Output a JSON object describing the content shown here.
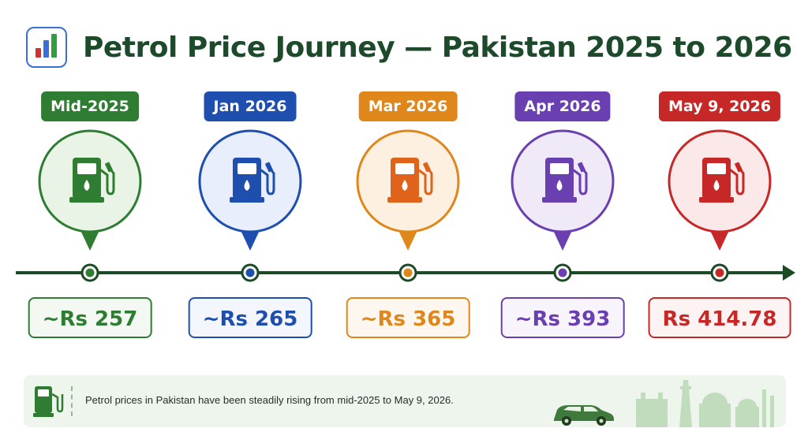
{
  "header": {
    "title": "Petrol Price Journey — Pakistan 2025 to 2026",
    "logo_icon": "bar-chart-icon"
  },
  "colors": {
    "line": "#1b4a24",
    "green": "#2e7d32",
    "blue": "#1e4fae",
    "orange": "#e0871c",
    "purple": "#6a3fb0",
    "red": "#c62828"
  },
  "timeline": {
    "icon": "fuel-pump-icon",
    "stages": [
      {
        "date": "Mid-2025",
        "price": "~Rs 257",
        "color": "#2e7d32",
        "pump": "#2e7d32",
        "bg": "#e9f4e7",
        "tint": "#f3f9f2"
      },
      {
        "date": "Jan 2026",
        "price": "~Rs 265",
        "color": "#1e4fae",
        "pump": "#1e4fae",
        "bg": "#e8eefb",
        "tint": "#f3f6fd"
      },
      {
        "date": "Mar 2026",
        "price": "~Rs 365",
        "color": "#e0871c",
        "pump": "#e0631c",
        "bg": "#fdf0e1",
        "tint": "#fef7ef"
      },
      {
        "date": "Apr 2026",
        "price": "~Rs 393",
        "color": "#6a3fb0",
        "pump": "#6a3fb0",
        "bg": "#efe9f8",
        "tint": "#f7f4fc"
      },
      {
        "date": "May 9, 2026",
        "price": "Rs 414.78",
        "color": "#c62828",
        "pump": "#c62828",
        "bg": "#fbe8e8",
        "tint": "#fdf3f3"
      }
    ]
  },
  "footer": {
    "text": "Petrol prices in Pakistan have been steadily rising from mid-2025 to May 9, 2026.",
    "icon": "fuel-pump-icon",
    "decor": "car-and-skyline-icon"
  }
}
